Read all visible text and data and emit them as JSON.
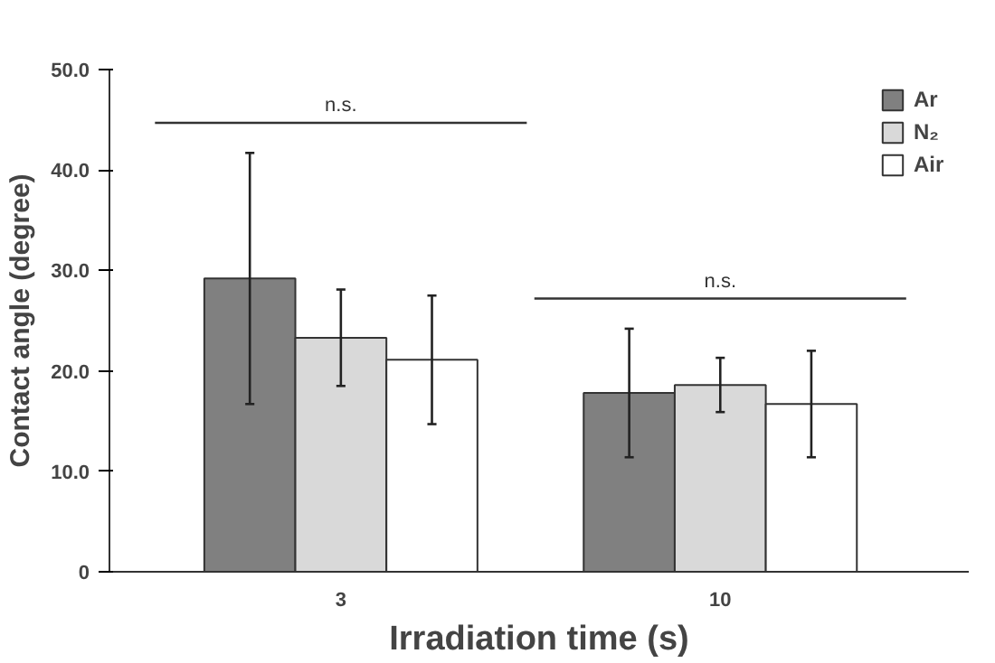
{
  "chart_data": {
    "type": "bar",
    "xlabel": "Irradiation time (s)",
    "ylabel": "Contact angle (degree)",
    "categories": [
      "3",
      "10"
    ],
    "series": [
      {
        "name": "Ar",
        "color": "#808080",
        "values": [
          29.2,
          17.8
        ],
        "errors": [
          12.5,
          6.4
        ]
      },
      {
        "name": "N₂",
        "color": "#d9d9d9",
        "values": [
          23.3,
          18.6
        ],
        "errors": [
          4.8,
          2.7
        ]
      },
      {
        "name": "Air",
        "color": "#ffffff",
        "values": [
          21.1,
          16.7
        ],
        "errors": [
          6.4,
          5.3
        ]
      }
    ],
    "ylim": [
      0,
      50
    ],
    "yticks": [
      0,
      {
        "value": 10,
        "label": "10.0"
      },
      {
        "value": 20,
        "label": "20.0"
      },
      {
        "value": 30,
        "label": "30.0"
      },
      {
        "value": 40,
        "label": "40.0"
      },
      {
        "value": 50,
        "label": "50.0"
      }
    ],
    "annotations": [
      "n.s.",
      "n.s."
    ],
    "grid": false,
    "legend": "top right"
  }
}
